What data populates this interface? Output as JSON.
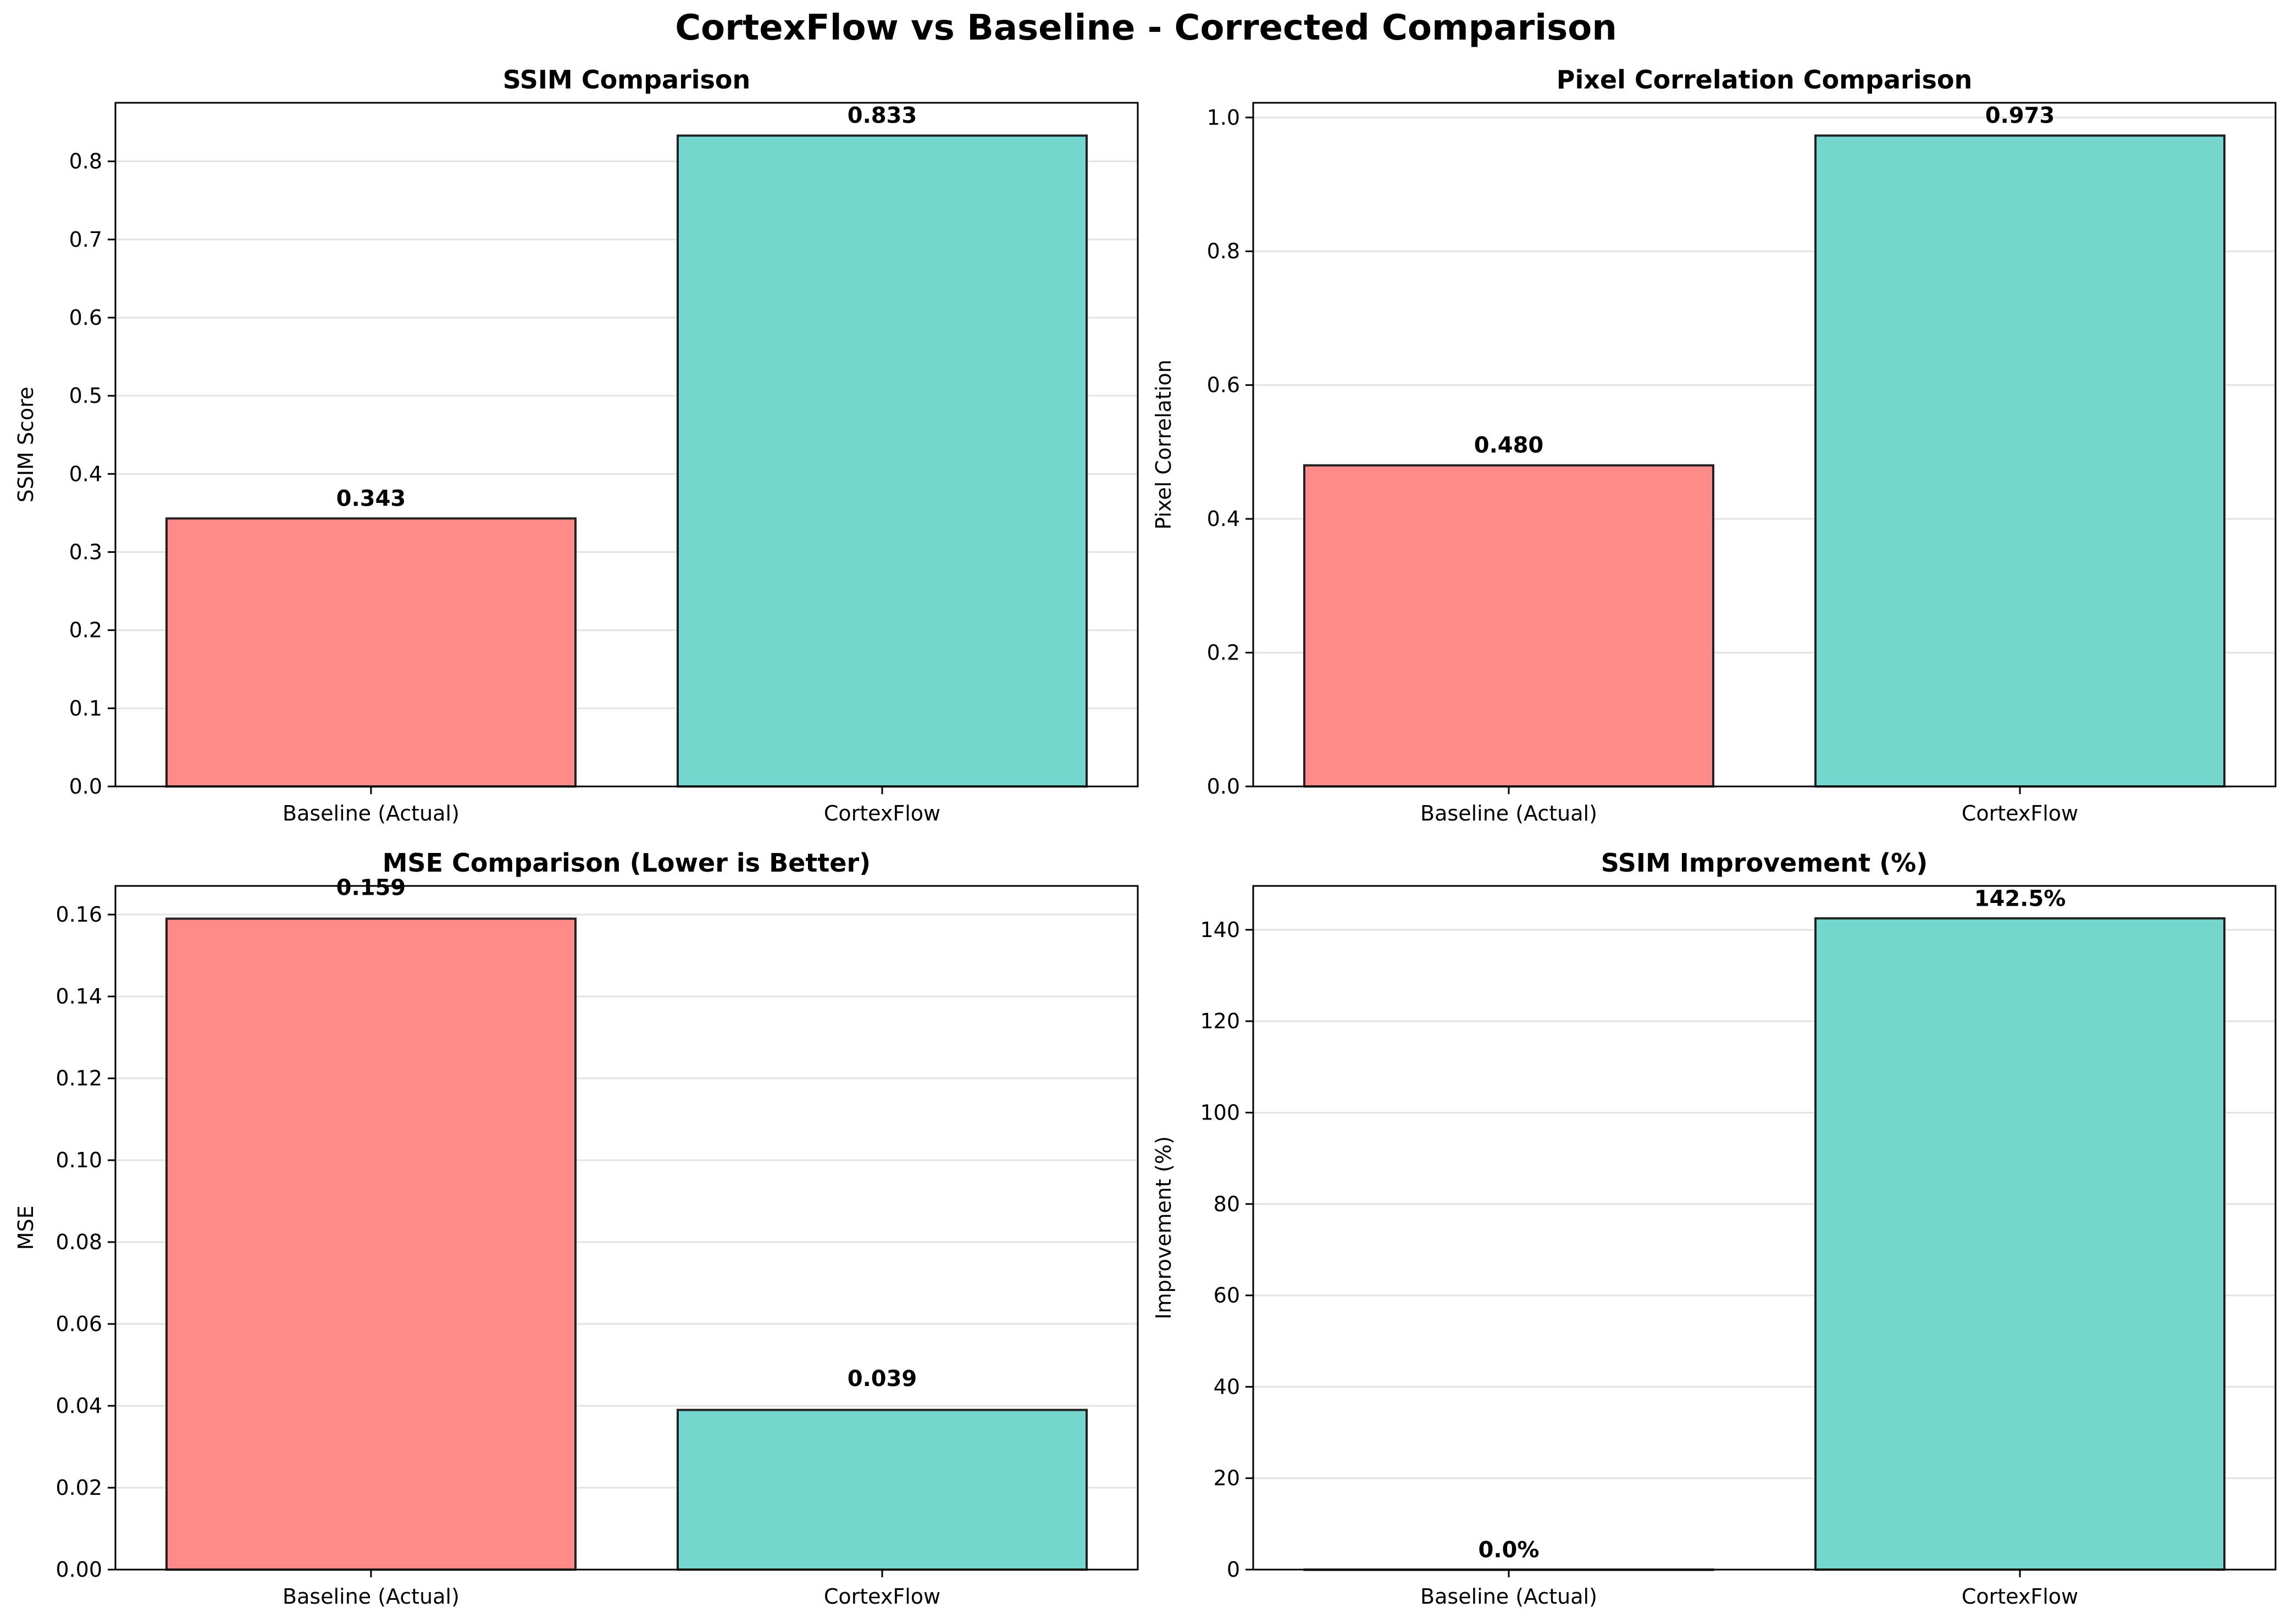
{
  "figure": {
    "title": "CortexFlow vs Baseline - Corrected Comparison"
  },
  "chart_data": [
    {
      "type": "bar",
      "title": "SSIM Comparison",
      "xlabel": "",
      "ylabel": "SSIM Score",
      "categories": [
        "Baseline (Actual)",
        "CortexFlow"
      ],
      "values": [
        0.343,
        0.833
      ],
      "value_labels": [
        "0.343",
        "0.833"
      ],
      "colors": [
        "#ff8a8a",
        "#74d6cf"
      ],
      "ylim": [
        0,
        0.875
      ],
      "yticks": [
        0.0,
        0.1,
        0.2,
        0.3,
        0.4,
        0.5,
        0.6,
        0.7,
        0.8
      ],
      "ytick_labels": [
        "0.0",
        "0.1",
        "0.2",
        "0.3",
        "0.4",
        "0.5",
        "0.6",
        "0.7",
        "0.8"
      ],
      "grid": "y",
      "label_offset": 0.012
    },
    {
      "type": "bar",
      "title": "Pixel Correlation Comparison",
      "xlabel": "",
      "ylabel": "Pixel Correlation",
      "categories": [
        "Baseline (Actual)",
        "CortexFlow"
      ],
      "values": [
        0.48,
        0.973
      ],
      "value_labels": [
        "0.480",
        "0.973"
      ],
      "colors": [
        "#ff8a8a",
        "#74d6cf"
      ],
      "ylim": [
        0,
        1.022
      ],
      "yticks": [
        0.0,
        0.2,
        0.4,
        0.6,
        0.8,
        1.0
      ],
      "ytick_labels": [
        "0.0",
        "0.2",
        "0.4",
        "0.6",
        "0.8",
        "1.0"
      ],
      "grid": "y",
      "label_offset": 0.014
    },
    {
      "type": "bar",
      "title": "MSE Comparison (Lower is Better)",
      "xlabel": "",
      "ylabel": "MSE",
      "categories": [
        "Baseline (Actual)",
        "CortexFlow"
      ],
      "values": [
        0.159,
        0.039
      ],
      "value_labels": [
        "0.159",
        "0.039"
      ],
      "colors": [
        "#ff8a8a",
        "#74d6cf"
      ],
      "ylim": [
        0,
        0.167
      ],
      "yticks": [
        0.0,
        0.02,
        0.04,
        0.06,
        0.08,
        0.1,
        0.12,
        0.14,
        0.16
      ],
      "ytick_labels": [
        "0.00",
        "0.02",
        "0.04",
        "0.06",
        "0.08",
        "0.10",
        "0.12",
        "0.14",
        "0.16"
      ],
      "grid": "y",
      "label_offset": 0.005
    },
    {
      "type": "bar",
      "title": "SSIM Improvement (%)",
      "xlabel": "",
      "ylabel": "Improvement (%)",
      "categories": [
        "Baseline (Actual)",
        "CortexFlow"
      ],
      "values": [
        0.0,
        142.5
      ],
      "value_labels": [
        "0.0%",
        "142.5%"
      ],
      "colors": [
        "#ff8a8a",
        "#74d6cf"
      ],
      "ylim": [
        0,
        149.6
      ],
      "yticks": [
        0,
        20,
        40,
        60,
        80,
        100,
        120,
        140
      ],
      "ytick_labels": [
        "0",
        "20",
        "40",
        "60",
        "80",
        "100",
        "120",
        "140"
      ],
      "grid": "y",
      "label_offset": 2
    }
  ]
}
